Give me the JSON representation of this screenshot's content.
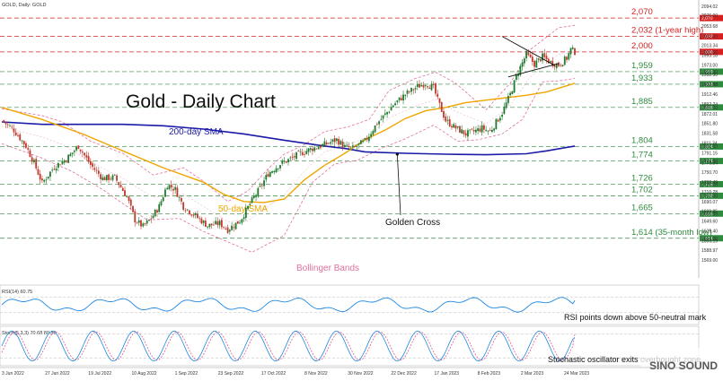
{
  "header": {
    "symbol_label": "GOLD, Daily: GOLD",
    "rsi_label": "RSI(14) 60.75",
    "stoch_label": "Stoch(5,3,3) 70.68 80.86"
  },
  "annotations": {
    "title": "Gold - Daily Chart",
    "sma200": "200-day SMA",
    "sma50": "50-day SMA",
    "golden_cross": "Golden Cross",
    "bollinger": "Bollinger Bands",
    "rsi_note": "RSI points down above 50-neutral mark",
    "stoch_note": "Stochastic oscillator exits overbought zone"
  },
  "watermark": "SINO SOUND",
  "colors": {
    "bull": "#1f7a2e",
    "bear": "#c0392b",
    "sma50": "#f0a500",
    "sma200": "#1a1aa8",
    "bollinger": "#e070a0",
    "level_green": "#2e8b3e",
    "level_red": "#d62020",
    "rsi_line": "#1e88e5",
    "stoch_k": "#1e88e5",
    "stoch_d": "#e05a8a",
    "grid": "#dddddd"
  },
  "chart_data": {
    "type": "candlestick",
    "title": "Gold - Daily Chart",
    "y_range": [
      1569,
      2100
    ],
    "y_tick_labels": [
      "2094.02",
      "2076.00",
      "2053.68",
      "2032.00",
      "2013.34",
      "2000.00",
      "1993.18",
      "1973.00",
      "1959.00",
      "1952.90",
      "1933.00",
      "1932.68",
      "1912.46",
      "1892.24",
      "1885.00",
      "1872.01",
      "1851.80",
      "1831.58",
      "1811.34",
      "1804.00",
      "1791.15",
      "1774.00",
      "1770.84",
      "1750.70",
      "1730.49",
      "1726.00",
      "1710.28",
      "1702.00",
      "1690.07",
      "1669.85",
      "1665.00",
      "1649.60",
      "1629.40",
      "1614.00",
      "1609.19",
      "1588.97",
      "1569.00"
    ],
    "x_tick_labels": [
      "3 Jun 2022",
      "27 Jun 2022",
      "19 Jul 2022",
      "10 Aug 2022",
      "1 Sep 2022",
      "23 Sep 2022",
      "17 Oct 2022",
      "8 Nov 2022",
      "30 Nov 2022",
      "22 Dec 2022",
      "17 Jan 2023",
      "8 Feb 2023",
      "2 Mar 2023",
      "24 Mar 2023"
    ],
    "levels": [
      {
        "value": 2070,
        "label": "2,070",
        "color": "red"
      },
      {
        "value": 2032,
        "label": "2,032 (1-year high)",
        "color": "red"
      },
      {
        "value": 2000,
        "label": "2,000",
        "color": "red"
      },
      {
        "value": 1959,
        "label": "1,959",
        "color": "green"
      },
      {
        "value": 1933,
        "label": "1,933",
        "color": "green"
      },
      {
        "value": 1885,
        "label": "1,885",
        "color": "green"
      },
      {
        "value": 1804,
        "label": "1,804",
        "color": "green"
      },
      {
        "value": 1774,
        "label": "1,774",
        "color": "green"
      },
      {
        "value": 1726,
        "label": "1,726",
        "color": "green"
      },
      {
        "value": 1702,
        "label": "1,702",
        "color": "green"
      },
      {
        "value": 1665,
        "label": "1,665",
        "color": "green"
      },
      {
        "value": 1614,
        "label": "1,614 (35-month low)",
        "color": "green"
      }
    ],
    "close_path": [
      [
        0,
        1858
      ],
      [
        6,
        1838
      ],
      [
        12,
        1805
      ],
      [
        16,
        1770
      ],
      [
        20,
        1728
      ],
      [
        26,
        1762
      ],
      [
        32,
        1778
      ],
      [
        38,
        1805
      ],
      [
        44,
        1766
      ],
      [
        50,
        1738
      ],
      [
        56,
        1740
      ],
      [
        62,
        1700
      ],
      [
        66,
        1652
      ],
      [
        70,
        1638
      ],
      [
        74,
        1655
      ],
      [
        78,
        1680
      ],
      [
        82,
        1725
      ],
      [
        86,
        1715
      ],
      [
        90,
        1680
      ],
      [
        96,
        1660
      ],
      [
        102,
        1640
      ],
      [
        108,
        1645
      ],
      [
        112,
        1632
      ],
      [
        118,
        1650
      ],
      [
        124,
        1692
      ],
      [
        128,
        1718
      ],
      [
        132,
        1748
      ],
      [
        138,
        1768
      ],
      [
        142,
        1776
      ],
      [
        148,
        1790
      ],
      [
        154,
        1800
      ],
      [
        160,
        1808
      ],
      [
        166,
        1818
      ],
      [
        170,
        1803
      ],
      [
        174,
        1800
      ],
      [
        180,
        1815
      ],
      [
        186,
        1852
      ],
      [
        190,
        1870
      ],
      [
        194,
        1890
      ],
      [
        200,
        1912
      ],
      [
        206,
        1928
      ],
      [
        210,
        1935
      ],
      [
        214,
        1926
      ],
      [
        216,
        1900
      ],
      [
        220,
        1858
      ],
      [
        224,
        1845
      ],
      [
        230,
        1830
      ],
      [
        234,
        1835
      ],
      [
        238,
        1842
      ],
      [
        242,
        1835
      ],
      [
        248,
        1874
      ],
      [
        252,
        1912
      ],
      [
        256,
        1960
      ],
      [
        260,
        1995
      ],
      [
        264,
        1975
      ],
      [
        268,
        1990
      ],
      [
        272,
        1978
      ],
      [
        276,
        1973
      ],
      [
        280,
        1987
      ],
      [
        282,
        2005
      ],
      [
        284,
        2000
      ]
    ],
    "sma50": [
      [
        0,
        1885
      ],
      [
        20,
        1860
      ],
      [
        40,
        1830
      ],
      [
        60,
        1795
      ],
      [
        80,
        1760
      ],
      [
        100,
        1730
      ],
      [
        110,
        1705
      ],
      [
        120,
        1690
      ],
      [
        130,
        1688
      ],
      [
        140,
        1695
      ],
      [
        150,
        1735
      ],
      [
        160,
        1765
      ],
      [
        170,
        1790
      ],
      [
        180,
        1818
      ],
      [
        190,
        1838
      ],
      [
        200,
        1862
      ],
      [
        210,
        1878
      ],
      [
        220,
        1885
      ],
      [
        230,
        1895
      ],
      [
        240,
        1900
      ],
      [
        250,
        1905
      ],
      [
        260,
        1910
      ],
      [
        270,
        1917
      ],
      [
        284,
        1935
      ]
    ],
    "sma200": [
      [
        0,
        1855
      ],
      [
        20,
        1850
      ],
      [
        40,
        1850
      ],
      [
        60,
        1850
      ],
      [
        80,
        1847
      ],
      [
        100,
        1840
      ],
      [
        120,
        1830
      ],
      [
        140,
        1817
      ],
      [
        160,
        1805
      ],
      [
        170,
        1800
      ],
      [
        180,
        1793
      ],
      [
        200,
        1790
      ],
      [
        220,
        1788
      ],
      [
        240,
        1787
      ],
      [
        260,
        1789
      ],
      [
        270,
        1795
      ],
      [
        284,
        1805
      ]
    ],
    "boll_upper": [
      [
        0,
        1882
      ],
      [
        20,
        1868
      ],
      [
        30,
        1855
      ],
      [
        44,
        1815
      ],
      [
        60,
        1790
      ],
      [
        75,
        1745
      ],
      [
        90,
        1760
      ],
      [
        100,
        1732
      ],
      [
        112,
        1690
      ],
      [
        122,
        1712
      ],
      [
        132,
        1758
      ],
      [
        140,
        1788
      ],
      [
        150,
        1808
      ],
      [
        160,
        1835
      ],
      [
        172,
        1845
      ],
      [
        182,
        1860
      ],
      [
        192,
        1920
      ],
      [
        205,
        1945
      ],
      [
        215,
        1958
      ],
      [
        225,
        1935
      ],
      [
        240,
        1880
      ],
      [
        252,
        1935
      ],
      [
        262,
        2005
      ],
      [
        276,
        2050
      ],
      [
        284,
        2055
      ]
    ],
    "boll_lower": [
      [
        0,
        1810
      ],
      [
        20,
        1780
      ],
      [
        35,
        1752
      ],
      [
        50,
        1715
      ],
      [
        62,
        1680
      ],
      [
        72,
        1652
      ],
      [
        88,
        1655
      ],
      [
        100,
        1628
      ],
      [
        110,
        1610
      ],
      [
        124,
        1585
      ],
      [
        140,
        1620
      ],
      [
        154,
        1730
      ],
      [
        165,
        1768
      ],
      [
        176,
        1775
      ],
      [
        188,
        1800
      ],
      [
        200,
        1820
      ],
      [
        214,
        1848
      ],
      [
        226,
        1815
      ],
      [
        236,
        1818
      ],
      [
        248,
        1830
      ],
      [
        258,
        1860
      ],
      [
        268,
        1938
      ],
      [
        276,
        1940
      ],
      [
        284,
        1945
      ]
    ],
    "triangle": {
      "upper": [
        [
          248,
          2032
        ],
        [
          274,
          1972
        ]
      ],
      "lower": [
        [
          251,
          1948
        ],
        [
          276,
          1976
        ]
      ]
    },
    "golden_cross_point": [
      196,
      1788
    ],
    "rsi": {
      "label": "RSI(14)",
      "value": 60.75,
      "range": [
        0,
        100
      ],
      "levels": [
        30,
        70
      ]
    },
    "stochastic": {
      "label": "Stoch(5,3,3)",
      "k": 70.68,
      "d": 80.86,
      "range": [
        0,
        100
      ],
      "levels": [
        20,
        80
      ]
    }
  }
}
